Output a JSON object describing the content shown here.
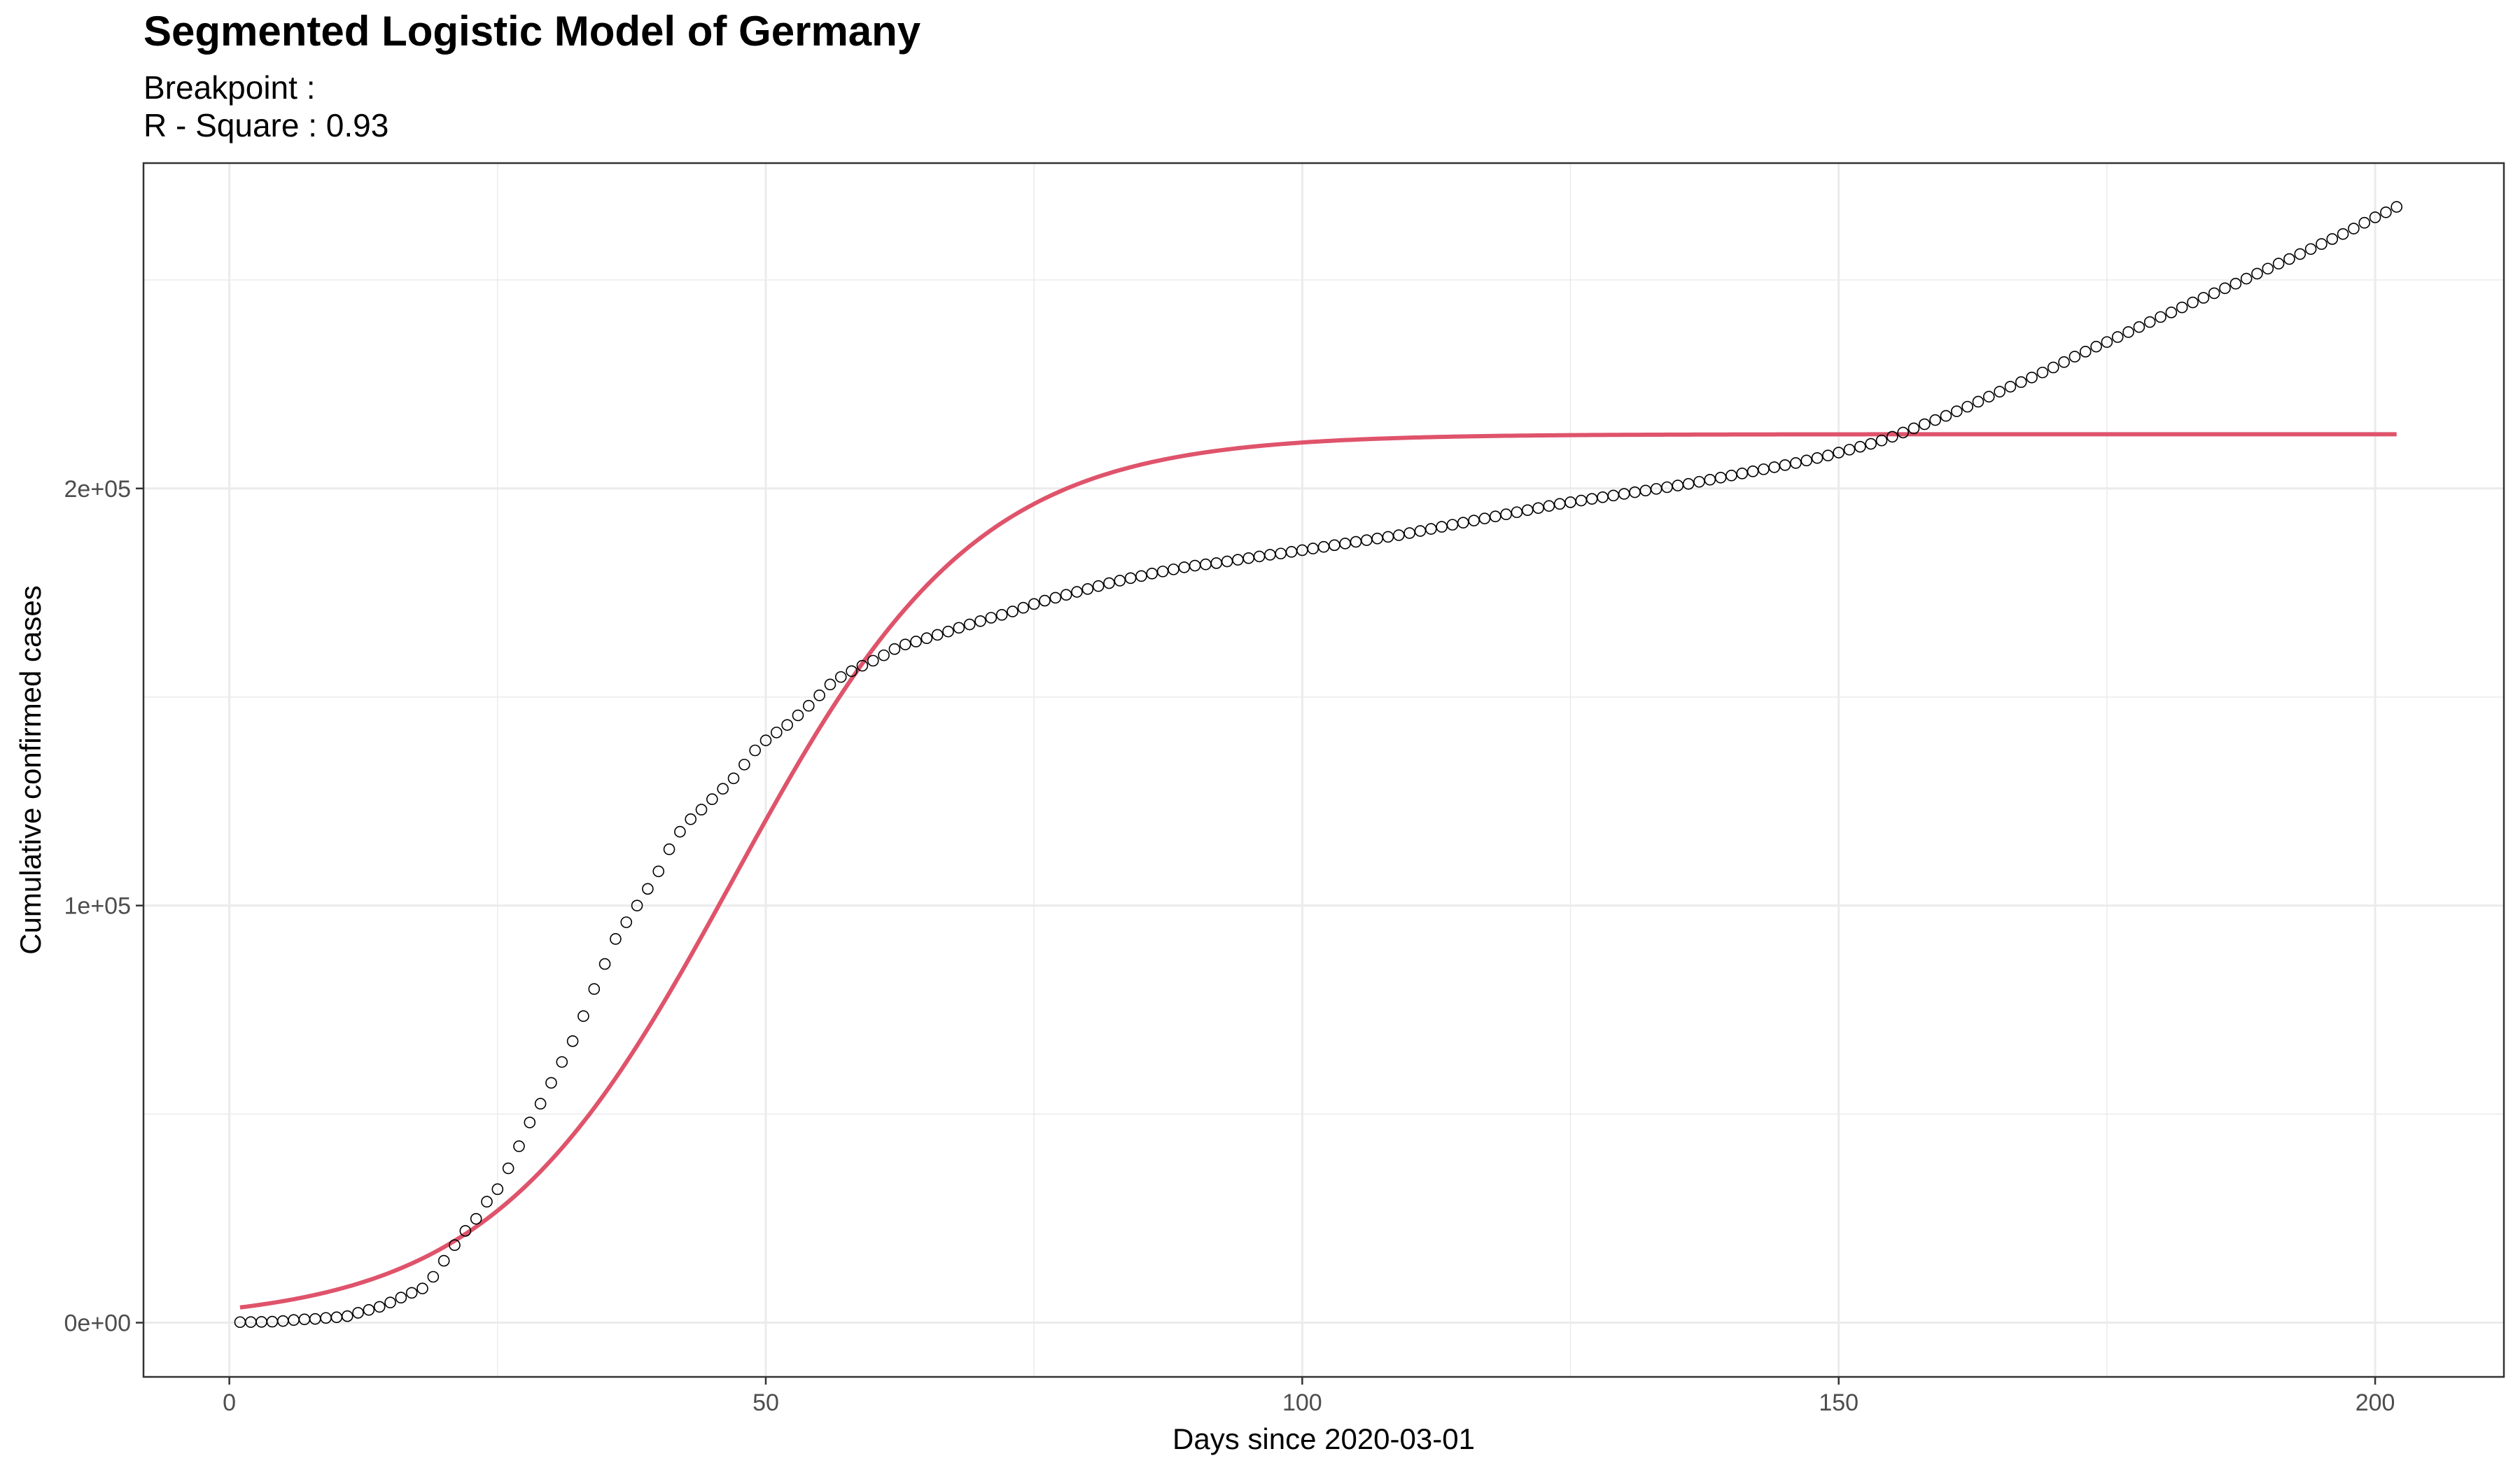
{
  "chart_data": {
    "type": "scatter",
    "title": "Segmented Logistic Model of Germany",
    "subtitle_lines": [
      "Breakpoint :",
      "R - Square : 0.93"
    ],
    "xlabel": "Days since 2020-03-01",
    "ylabel": "Cumulative confirmed cases",
    "xlim": [
      -8,
      212
    ],
    "ylim": [
      -13000,
      278000
    ],
    "x_ticks": [
      0,
      50,
      100,
      150,
      200
    ],
    "x_tick_labels": [
      "0",
      "50",
      "100",
      "150",
      "200"
    ],
    "x_minor_ticks": [
      25,
      75,
      125,
      175
    ],
    "y_ticks": [
      0,
      100000,
      200000
    ],
    "y_tick_labels": [
      "0e+00",
      "1e+05",
      "2e+05"
    ],
    "y_minor_ticks": [
      50000,
      150000,
      250000
    ],
    "grid": true,
    "legend": "none",
    "colors": {
      "fit_line": "#DF536B",
      "points": "#000000",
      "panel_border": "#333333",
      "grid": "#ebebeb"
    },
    "series": [
      {
        "type": "scatter",
        "x": [
          1,
          2,
          3,
          4,
          5,
          6,
          7,
          8,
          9,
          10,
          11,
          12,
          13,
          14,
          15,
          16,
          17,
          18,
          19,
          20,
          21,
          22,
          23,
          24,
          25,
          26,
          27,
          28,
          29,
          30,
          31,
          32,
          33,
          34,
          35,
          36,
          37,
          38,
          39,
          40,
          41,
          42,
          43,
          44,
          45,
          46,
          47,
          48,
          49,
          50,
          51,
          52,
          53,
          54,
          55,
          56,
          57,
          58,
          59,
          60,
          61,
          62,
          63,
          64,
          65,
          66,
          67,
          68,
          69,
          70,
          71,
          72,
          73,
          74,
          75,
          76,
          77,
          78,
          79,
          80,
          81,
          82,
          83,
          84,
          85,
          86,
          87,
          88,
          89,
          90,
          91,
          92,
          93,
          94,
          95,
          96,
          97,
          98,
          99,
          100,
          101,
          102,
          103,
          104,
          105,
          106,
          107,
          108,
          109,
          110,
          111,
          112,
          113,
          114,
          115,
          116,
          117,
          118,
          119,
          120,
          121,
          122,
          123,
          124,
          125,
          126,
          127,
          128,
          129,
          130,
          131,
          132,
          133,
          134,
          135,
          136,
          137,
          138,
          139,
          140,
          141,
          142,
          143,
          144,
          145,
          146,
          147,
          148,
          149,
          150,
          151,
          152,
          153,
          154,
          155,
          156,
          157,
          158,
          159,
          160,
          161,
          162,
          163,
          164,
          165,
          166,
          167,
          168,
          169,
          170,
          171,
          172,
          173,
          174,
          175,
          176,
          177,
          178,
          179,
          180,
          181,
          182,
          183,
          184,
          185,
          186,
          187,
          188,
          189,
          190,
          191,
          192,
          193,
          194,
          195,
          196,
          197,
          198,
          199,
          200,
          201,
          202
        ],
        "y": [
          130,
          150,
          188,
          240,
          400,
          639,
          795,
          902,
          1139,
          1296,
          1567,
          2369,
          3062,
          3795,
          4838,
          6012,
          7156,
          8198,
          10999,
          14840,
          18600,
          22000,
          24900,
          29000,
          32000,
          37000,
          42300,
          48000,
          52500,
          57500,
          62500,
          67500,
          73500,
          80000,
          86000,
          92000,
          96000,
          100000,
          104000,
          108200,
          113500,
          117700,
          120700,
          123000,
          125500,
          128000,
          130500,
          133800,
          137200,
          139600,
          141500,
          143300,
          145600,
          147900,
          150400,
          153000,
          154800,
          156200,
          157500,
          158700,
          160000,
          161500,
          162600,
          163300,
          164100,
          164900,
          165700,
          166600,
          167400,
          168200,
          169000,
          169700,
          170500,
          171400,
          172300,
          173100,
          173800,
          174500,
          175200,
          175900,
          176600,
          177300,
          177900,
          178500,
          179000,
          179600,
          180100,
          180600,
          181100,
          181500,
          181800,
          182100,
          182500,
          182900,
          183300,
          183700,
          184100,
          184400,
          184800,
          185200,
          185600,
          186000,
          186400,
          186800,
          187200,
          187600,
          188000,
          188400,
          188800,
          189300,
          189800,
          190300,
          190800,
          191300,
          191800,
          192300,
          192800,
          193300,
          193800,
          194300,
          194800,
          195300,
          195800,
          196300,
          196700,
          197100,
          197500,
          197900,
          198300,
          198700,
          199100,
          199500,
          199900,
          200300,
          200700,
          201100,
          201600,
          202100,
          202600,
          203100,
          203600,
          204100,
          204600,
          205100,
          205600,
          206100,
          206700,
          207300,
          207900,
          208600,
          209300,
          210000,
          210700,
          211500,
          212400,
          213400,
          214400,
          215400,
          216400,
          217400,
          218500,
          219600,
          220800,
          222000,
          223200,
          224400,
          225500,
          226600,
          227800,
          229000,
          230300,
          231600,
          232800,
          234000,
          235100,
          236300,
          237500,
          238700,
          239900,
          241100,
          242200,
          243400,
          244600,
          245700,
          246800,
          248000,
          249100,
          250300,
          251500,
          252700,
          253900,
          255000,
          256200,
          257400,
          258600,
          259800,
          261000,
          262300,
          263700,
          265000,
          266200,
          267500
        ]
      },
      {
        "type": "line",
        "model": "logistic",
        "K": 213000,
        "r": 0.088,
        "t0": 47,
        "x_range": [
          1,
          202
        ]
      }
    ]
  }
}
